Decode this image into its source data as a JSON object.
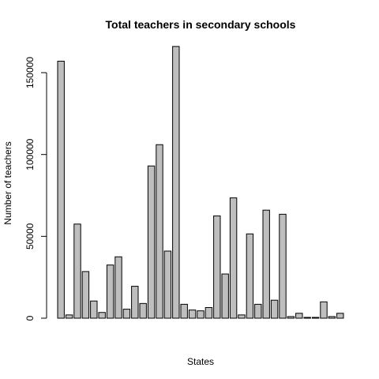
{
  "chart_data": {
    "type": "bar",
    "title": "Total teachers in secondary schools",
    "xlabel": "States",
    "ylabel": "Number of teachers",
    "ylim": [
      0,
      170000
    ],
    "y_ticks": [
      0,
      50000,
      100000,
      150000
    ],
    "grid": false,
    "bar_color": "#bebebe",
    "border_color": "#000000",
    "values": [
      157000,
      2000,
      57500,
      28500,
      10500,
      3500,
      32500,
      37500,
      5500,
      19500,
      9000,
      93000,
      106000,
      41000,
      166000,
      8500,
      5000,
      4500,
      6500,
      62500,
      27000,
      73500,
      2000,
      51500,
      8500,
      66000,
      11000,
      63500,
      1000,
      3000,
      500,
      500,
      10000,
      1000,
      3000
    ]
  }
}
